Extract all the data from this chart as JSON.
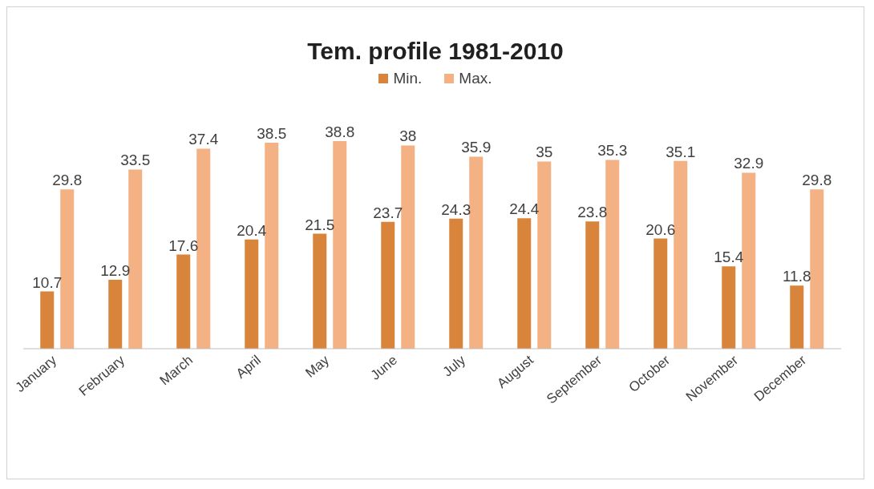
{
  "chart_data": {
    "type": "bar",
    "title": "Tem. profile  1981-2010",
    "categories": [
      "January",
      "February",
      "March",
      "April",
      "May",
      "June",
      "July",
      "August",
      "September",
      "October",
      "November",
      "December"
    ],
    "series": [
      {
        "name": "Min.",
        "color": "#d9843b",
        "values": [
          10.7,
          12.9,
          17.6,
          20.4,
          21.5,
          23.7,
          24.3,
          24.4,
          23.8,
          20.6,
          15.4,
          11.8
        ]
      },
      {
        "name": "Max.",
        "color": "#f4b183",
        "values": [
          29.8,
          33.5,
          37.4,
          38.5,
          38.8,
          38,
          35.9,
          35,
          35.3,
          35.1,
          32.9,
          29.8
        ]
      }
    ],
    "data_labels": true,
    "legend": "top",
    "grid": false
  }
}
